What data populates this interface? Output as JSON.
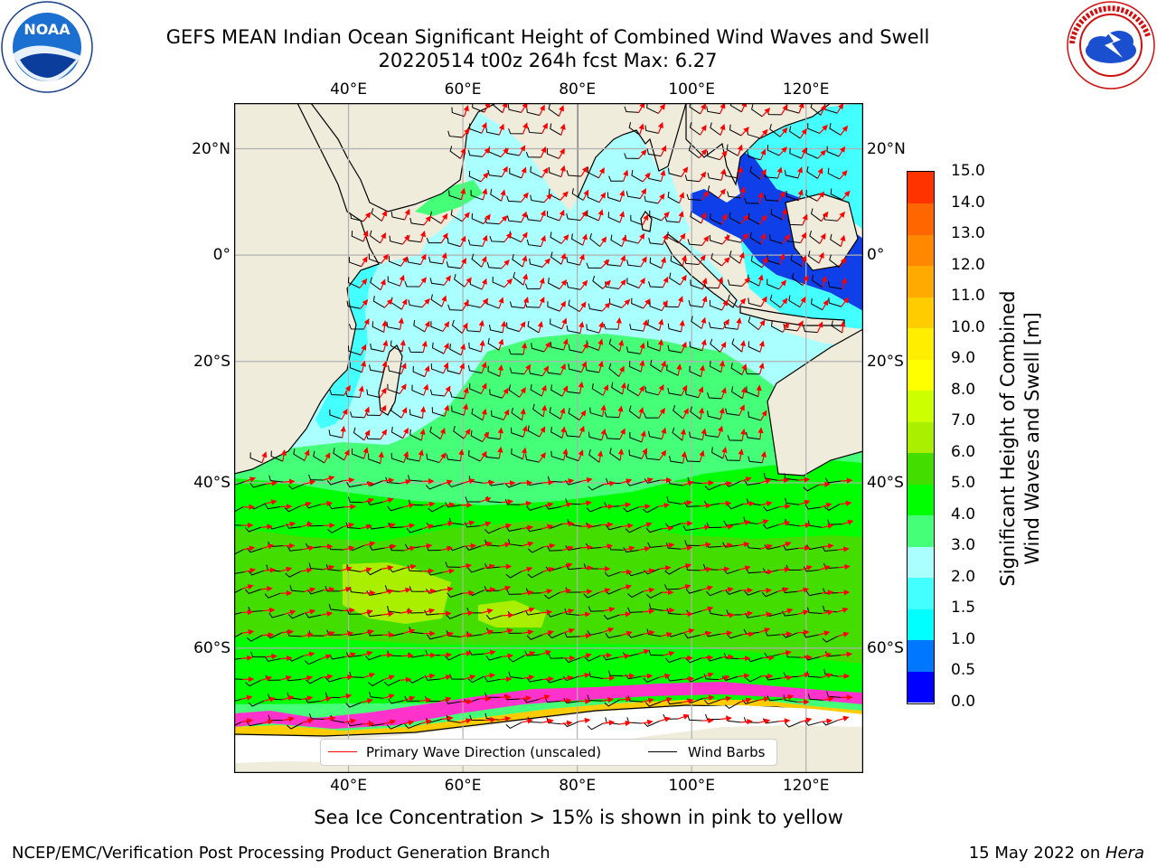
{
  "title": {
    "line1": "GEFS MEAN Indian Ocean Significant Height of Combined Wind Waves and Swell",
    "line2": "20220514 t00z 264h fcst   Max: 6.27"
  },
  "logos": {
    "left": {
      "text": "NOAA",
      "ring_text": "NATIONAL OCEANIC AND ATMOSPHERIC ADMINISTRATION · U.S. DEPARTMENT OF COMMERCE"
    },
    "right": {
      "ring_text": "NATIONAL WEATHER SERVICE"
    }
  },
  "map": {
    "lon_ticks": [
      "40°E",
      "60°E",
      "80°E",
      "100°E",
      "120°E"
    ],
    "lon_values": [
      40,
      60,
      80,
      100,
      120
    ],
    "lat_ticks": [
      "20°N",
      "0°",
      "20°S",
      "40°S",
      "60°S"
    ],
    "lat_values": [
      20,
      0,
      -20,
      -40,
      -60
    ],
    "extent": {
      "lon_min": 20,
      "lon_max": 130,
      "lat_min": -70,
      "lat_max": 28
    },
    "colors": {
      "land": "#efecdc",
      "ice": "#ffffff",
      "arrow": "#ff0000",
      "barb": "#000000",
      "grid": "#b0b0b0"
    }
  },
  "legend": {
    "items": [
      {
        "label": "Primary Wave Direction (unscaled)",
        "color": "#ff0000"
      },
      {
        "label": "Wind Barbs",
        "color": "#000000"
      }
    ]
  },
  "colorbar": {
    "title_line1": "Significant Height of Combined",
    "title_line2": "Wind Waves and Swell [m]",
    "labels": [
      "0.0",
      "0.5",
      "1.0",
      "1.5",
      "2.0",
      "3.0",
      "4.0",
      "5.0",
      "6.0",
      "7.0",
      "8.0",
      "9.0",
      "10.0",
      "11.0",
      "12.0",
      "13.0",
      "14.0",
      "15.0"
    ],
    "colors": [
      "#0000ff",
      "#0077ff",
      "#00ffff",
      "#44ffff",
      "#aaffff",
      "#44ff77",
      "#00ff00",
      "#44dd00",
      "#aaee00",
      "#ccff00",
      "#ffff00",
      "#ffee00",
      "#ffcc00",
      "#ffaa00",
      "#ff8800",
      "#ff6600",
      "#ff3300"
    ]
  },
  "caption": "Sea Ice Concentration > 15% is shown in pink to yellow",
  "footer": {
    "left": "NCEP/EMC/Verification Post Processing Product Generation Branch",
    "right_date": "15 May 2022 on ",
    "right_host": "Hera"
  }
}
